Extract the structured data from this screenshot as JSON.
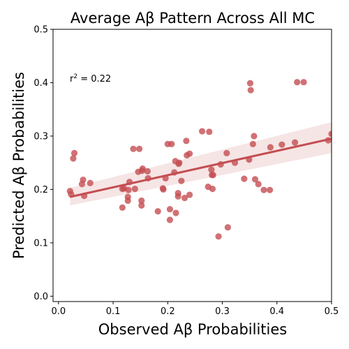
{
  "chart_data": {
    "type": "scatter",
    "title": "Average Aβ Pattern Across All MC",
    "xlabel": "Observed Aβ Probabilities",
    "ylabel": "Predicted Aβ Probabilities",
    "xlim": [
      -0.01,
      0.5
    ],
    "ylim": [
      -0.01,
      0.5
    ],
    "xticks": [
      "0.0",
      "0.1",
      "0.2",
      "0.3",
      "0.4",
      "0.5"
    ],
    "yticks": [
      "0.0",
      "0.1",
      "0.2",
      "0.3",
      "0.4",
      "0.5"
    ],
    "annotation": {
      "prefix": "r",
      "sup": "2",
      "suffix": " = 0.22"
    },
    "grid": false,
    "colors": {
      "points": "#c44e52",
      "line": "#c44e52",
      "band": "#c44e52"
    },
    "points": [
      [
        0.021,
        0.197
      ],
      [
        0.023,
        0.191
      ],
      [
        0.027,
        0.258
      ],
      [
        0.029,
        0.268
      ],
      [
        0.043,
        0.21
      ],
      [
        0.045,
        0.218
      ],
      [
        0.047,
        0.188
      ],
      [
        0.058,
        0.212
      ],
      [
        0.117,
        0.166
      ],
      [
        0.117,
        0.201
      ],
      [
        0.12,
        0.202
      ],
      [
        0.127,
        0.186
      ],
      [
        0.127,
        0.179
      ],
      [
        0.128,
        0.199
      ],
      [
        0.13,
        0.214
      ],
      [
        0.137,
        0.276
      ],
      [
        0.14,
        0.201
      ],
      [
        0.146,
        0.233
      ],
      [
        0.148,
        0.276
      ],
      [
        0.152,
        0.17
      ],
      [
        0.152,
        0.179
      ],
      [
        0.153,
        0.235
      ],
      [
        0.154,
        0.239
      ],
      [
        0.163,
        0.234
      ],
      [
        0.164,
        0.221
      ],
      [
        0.182,
        0.159
      ],
      [
        0.191,
        0.202
      ],
      [
        0.192,
        0.2
      ],
      [
        0.196,
        0.221
      ],
      [
        0.2,
        0.285
      ],
      [
        0.204,
        0.143
      ],
      [
        0.204,
        0.163
      ],
      [
        0.207,
        0.285
      ],
      [
        0.212,
        0.232
      ],
      [
        0.214,
        0.253
      ],
      [
        0.215,
        0.156
      ],
      [
        0.219,
        0.187
      ],
      [
        0.219,
        0.193
      ],
      [
        0.22,
        0.248
      ],
      [
        0.221,
        0.25
      ],
      [
        0.225,
        0.216
      ],
      [
        0.231,
        0.184
      ],
      [
        0.234,
        0.291
      ],
      [
        0.235,
        0.264
      ],
      [
        0.24,
        0.19
      ],
      [
        0.24,
        0.267
      ],
      [
        0.263,
        0.309
      ],
      [
        0.274,
        0.205
      ],
      [
        0.276,
        0.308
      ],
      [
        0.28,
        0.237
      ],
      [
        0.281,
        0.227
      ],
      [
        0.282,
        0.201
      ],
      [
        0.283,
        0.227
      ],
      [
        0.293,
        0.112
      ],
      [
        0.297,
        0.247
      ],
      [
        0.308,
        0.268
      ],
      [
        0.31,
        0.129
      ],
      [
        0.323,
        0.25
      ],
      [
        0.34,
        0.22
      ],
      [
        0.349,
        0.256
      ],
      [
        0.351,
        0.399
      ],
      [
        0.352,
        0.386
      ],
      [
        0.356,
        0.285
      ],
      [
        0.358,
        0.3
      ],
      [
        0.36,
        0.219
      ],
      [
        0.366,
        0.21
      ],
      [
        0.376,
        0.199
      ],
      [
        0.387,
        0.199
      ],
      [
        0.388,
        0.279
      ],
      [
        0.409,
        0.284
      ],
      [
        0.433,
        0.288
      ],
      [
        0.437,
        0.401
      ],
      [
        0.449,
        0.401
      ],
      [
        0.494,
        0.292
      ],
      [
        0.5,
        0.304
      ]
    ],
    "regression": {
      "x_range": [
        0.021,
        0.5
      ],
      "y_start": 0.186,
      "y_end": 0.295,
      "ci_lower": [
        0.17,
        0.268
      ],
      "ci_upper": [
        0.203,
        0.326
      ]
    }
  }
}
